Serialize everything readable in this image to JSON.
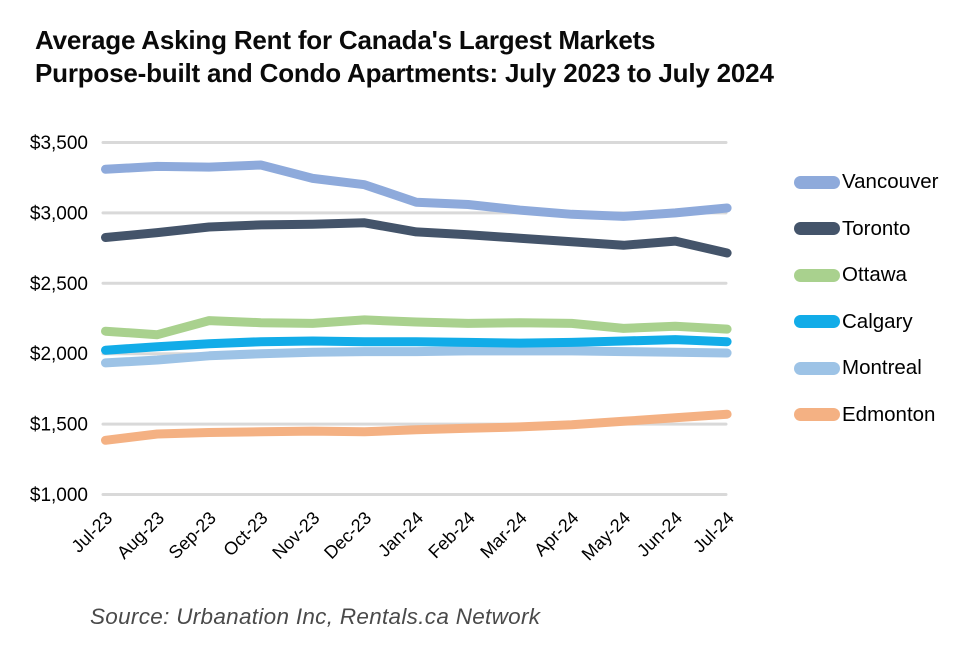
{
  "chart_data": {
    "type": "line",
    "title": "Average Asking Rent for Canada's Largest Markets Purpose-built and Condo Apartments: July 2023 to July 2024",
    "title_line1": "Average Asking Rent for Canada's Largest Markets",
    "title_line2": "Purpose-built and Condo Apartments: July 2023 to July 2024",
    "source": "Source: Urbanation Inc, Rentals.ca Network",
    "categories": [
      "Jul-23",
      "Aug-23",
      "Sep-23",
      "Oct-23",
      "Nov-23",
      "Dec-23",
      "Jan-24",
      "Feb-24",
      "Mar-24",
      "Apr-24",
      "May-24",
      "Jun-24",
      "Jul-24"
    ],
    "yticks": [
      {
        "label": "$3,500",
        "value": 3500
      },
      {
        "label": "$3,000",
        "value": 3000
      },
      {
        "label": "$2,500",
        "value": 2500
      },
      {
        "label": "$2,000",
        "value": 2000
      },
      {
        "label": "$1,500",
        "value": 1500
      },
      {
        "label": "$1,000",
        "value": 1000
      }
    ],
    "ylim": [
      1000,
      3500
    ],
    "grid": true,
    "legend_position": "right",
    "colors": {
      "gridline": "#d9d9d9",
      "title_text": "#0a0a0a",
      "source_text": "#4a4a4a"
    },
    "series": [
      {
        "name": "Vancouver",
        "color": "#8eaadb",
        "values": [
          3310,
          3330,
          3325,
          3340,
          3245,
          3200,
          3075,
          3060,
          3020,
          2990,
          2975,
          3000,
          3035
        ]
      },
      {
        "name": "Toronto",
        "color": "#44546a",
        "values": [
          2825,
          2860,
          2900,
          2915,
          2920,
          2930,
          2865,
          2845,
          2820,
          2795,
          2770,
          2800,
          2715
        ]
      },
      {
        "name": "Ottawa",
        "color": "#a9d18e",
        "values": [
          2160,
          2135,
          2235,
          2220,
          2215,
          2240,
          2225,
          2215,
          2220,
          2215,
          2180,
          2195,
          2175
        ]
      },
      {
        "name": "Calgary",
        "color": "#12ace8",
        "values": [
          2025,
          2050,
          2070,
          2085,
          2090,
          2085,
          2085,
          2080,
          2075,
          2080,
          2090,
          2100,
          2085
        ]
      },
      {
        "name": "Montreal",
        "color": "#9dc3e6",
        "values": [
          1935,
          1955,
          1985,
          2000,
          2010,
          2015,
          2015,
          2020,
          2020,
          2020,
          2015,
          2010,
          2005
        ]
      },
      {
        "name": "Edmonton",
        "color": "#f4b183",
        "values": [
          1385,
          1430,
          1440,
          1445,
          1450,
          1445,
          1460,
          1470,
          1480,
          1495,
          1520,
          1545,
          1570
        ]
      }
    ]
  }
}
